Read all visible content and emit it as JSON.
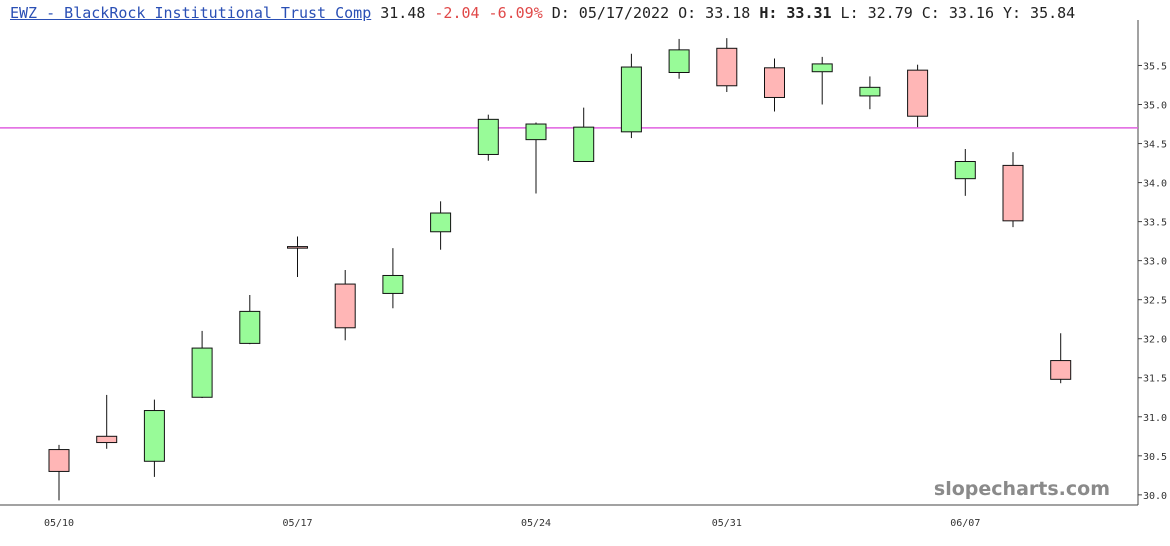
{
  "header": {
    "symbol_title": "EWZ - BlackRock Institutional Trust Comp",
    "last": "31.48",
    "change": "-2.04",
    "change_pct": "-6.09%",
    "date_label": "D:",
    "date": "05/17/2022",
    "open_label": "O:",
    "open": "33.18",
    "high_label": "H:",
    "high": "33.31",
    "low_label": "L:",
    "low": "32.79",
    "close_label": "C:",
    "close": "33.16",
    "y_label": "Y:",
    "y_value": "35.84"
  },
  "watermark": "slopecharts.com",
  "colors": {
    "up": "#98fb98",
    "down": "#ffb6b6",
    "hline": "#e060e0",
    "axis": "#444444",
    "text": "#333333"
  },
  "chart_data": {
    "type": "candlestick",
    "yticks": [
      "30.0",
      "30.5",
      "31.0",
      "31.5",
      "32.0",
      "32.5",
      "33.0",
      "33.5",
      "34.0",
      "34.5",
      "35.0",
      "35.5"
    ],
    "ylim": [
      29.87,
      35.98
    ],
    "xticks": [
      {
        "label": "05/10",
        "index": 0
      },
      {
        "label": "05/17",
        "index": 5
      },
      {
        "label": "05/24",
        "index": 10
      },
      {
        "label": "05/31",
        "index": 14
      },
      {
        "label": "06/07",
        "index": 19
      }
    ],
    "horizontal_line": 34.7,
    "candles": [
      {
        "date": "05/10",
        "open": 30.58,
        "high": 30.64,
        "low": 29.93,
        "close": 30.3
      },
      {
        "date": "05/11",
        "open": 30.75,
        "high": 31.28,
        "low": 30.59,
        "close": 30.67
      },
      {
        "date": "05/12",
        "open": 30.43,
        "high": 31.22,
        "low": 30.23,
        "close": 31.08
      },
      {
        "date": "05/13",
        "open": 31.25,
        "high": 32.1,
        "low": 31.24,
        "close": 31.88
      },
      {
        "date": "05/16",
        "open": 31.94,
        "high": 32.56,
        "low": 31.93,
        "close": 32.35
      },
      {
        "date": "05/17",
        "open": 33.18,
        "high": 33.31,
        "low": 32.79,
        "close": 33.16
      },
      {
        "date": "05/18",
        "open": 32.7,
        "high": 32.88,
        "low": 31.98,
        "close": 32.14
      },
      {
        "date": "05/19",
        "open": 32.58,
        "high": 33.16,
        "low": 32.39,
        "close": 32.81
      },
      {
        "date": "05/20",
        "open": 33.37,
        "high": 33.76,
        "low": 33.14,
        "close": 33.61
      },
      {
        "date": "05/23",
        "open": 34.36,
        "high": 34.87,
        "low": 34.28,
        "close": 34.81
      },
      {
        "date": "05/24",
        "open": 34.55,
        "high": 34.77,
        "low": 33.86,
        "close": 34.75
      },
      {
        "date": "05/25",
        "open": 34.27,
        "high": 34.96,
        "low": 34.27,
        "close": 34.71
      },
      {
        "date": "05/26",
        "open": 34.65,
        "high": 35.65,
        "low": 34.57,
        "close": 35.48
      },
      {
        "date": "05/27",
        "open": 35.41,
        "high": 35.84,
        "low": 35.33,
        "close": 35.7
      },
      {
        "date": "05/31",
        "open": 35.72,
        "high": 35.85,
        "low": 35.16,
        "close": 35.24
      },
      {
        "date": "06/01",
        "open": 35.47,
        "high": 35.59,
        "low": 34.91,
        "close": 35.09
      },
      {
        "date": "06/02",
        "open": 35.42,
        "high": 35.61,
        "low": 35.0,
        "close": 35.52
      },
      {
        "date": "06/03",
        "open": 35.11,
        "high": 35.36,
        "low": 34.94,
        "close": 35.22
      },
      {
        "date": "06/06",
        "open": 35.44,
        "high": 35.51,
        "low": 34.71,
        "close": 34.85
      },
      {
        "date": "06/07",
        "open": 34.05,
        "high": 34.43,
        "low": 33.83,
        "close": 34.27
      },
      {
        "date": "06/08",
        "open": 34.22,
        "high": 34.39,
        "low": 33.43,
        "close": 33.51
      },
      {
        "date": "06/09",
        "open": 31.72,
        "high": 32.07,
        "low": 31.43,
        "close": 31.48
      }
    ]
  }
}
